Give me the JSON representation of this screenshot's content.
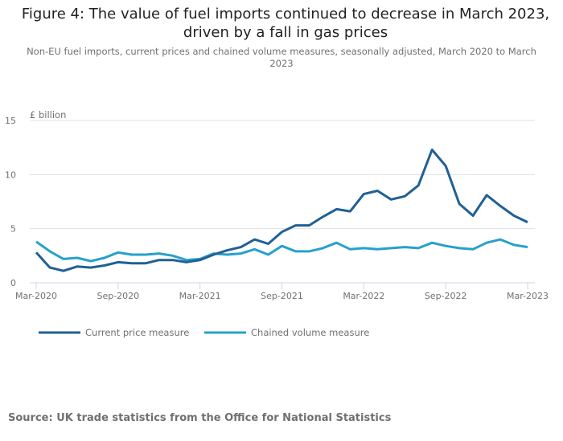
{
  "title": "Figure 4: The value of fuel imports continued to decrease in March 2023, driven by a fall in gas prices",
  "subtitle": "Non-EU fuel imports, current prices and chained volume measures, seasonally adjusted, March 2020 to March 2023",
  "source": "Source: UK trade statistics from the Office for National Statistics",
  "chart_data": {
    "type": "line",
    "ylabel": "£ billion",
    "ylim": [
      0,
      15
    ],
    "yticks": [
      0,
      5,
      10,
      15
    ],
    "grid": true,
    "legend_placement": "bottom-left",
    "x": [
      "Mar-2020",
      "Apr-2020",
      "May-2020",
      "Jun-2020",
      "Jul-2020",
      "Aug-2020",
      "Sep-2020",
      "Oct-2020",
      "Nov-2020",
      "Dec-2020",
      "Jan-2021",
      "Feb-2021",
      "Mar-2021",
      "Apr-2021",
      "May-2021",
      "Jun-2021",
      "Jul-2021",
      "Aug-2021",
      "Sep-2021",
      "Oct-2021",
      "Nov-2021",
      "Dec-2021",
      "Jan-2022",
      "Feb-2022",
      "Mar-2022",
      "Apr-2022",
      "May-2022",
      "Jun-2022",
      "Jul-2022",
      "Aug-2022",
      "Sep-2022",
      "Oct-2022",
      "Nov-2022",
      "Dec-2022",
      "Jan-2023",
      "Feb-2023",
      "Mar-2023"
    ],
    "xtick_labels": [
      "Mar-2020",
      "Sep-2020",
      "Mar-2021",
      "Sep-2021",
      "Mar-2022",
      "Sep-2022",
      "Mar-2023"
    ],
    "series": [
      {
        "name": "Current price measure",
        "color": "#206095",
        "values": [
          2.8,
          1.4,
          1.1,
          1.5,
          1.4,
          1.6,
          1.9,
          1.8,
          1.8,
          2.1,
          2.1,
          1.9,
          2.1,
          2.6,
          3.0,
          3.3,
          4.0,
          3.6,
          4.7,
          5.3,
          5.3,
          6.1,
          6.8,
          6.6,
          8.2,
          8.5,
          7.7,
          8.0,
          9.0,
          12.3,
          10.8,
          7.3,
          6.2,
          8.1,
          7.1,
          6.2,
          5.6
        ]
      },
      {
        "name": "Chained volume measure",
        "color": "#27a0cc",
        "values": [
          3.8,
          2.9,
          2.2,
          2.3,
          2.0,
          2.3,
          2.8,
          2.6,
          2.6,
          2.7,
          2.5,
          2.1,
          2.2,
          2.7,
          2.6,
          2.7,
          3.1,
          2.6,
          3.4,
          2.9,
          2.9,
          3.2,
          3.7,
          3.1,
          3.2,
          3.1,
          3.2,
          3.3,
          3.2,
          3.7,
          3.4,
          3.2,
          3.1,
          3.7,
          4.0,
          3.5,
          3.3
        ]
      }
    ]
  }
}
